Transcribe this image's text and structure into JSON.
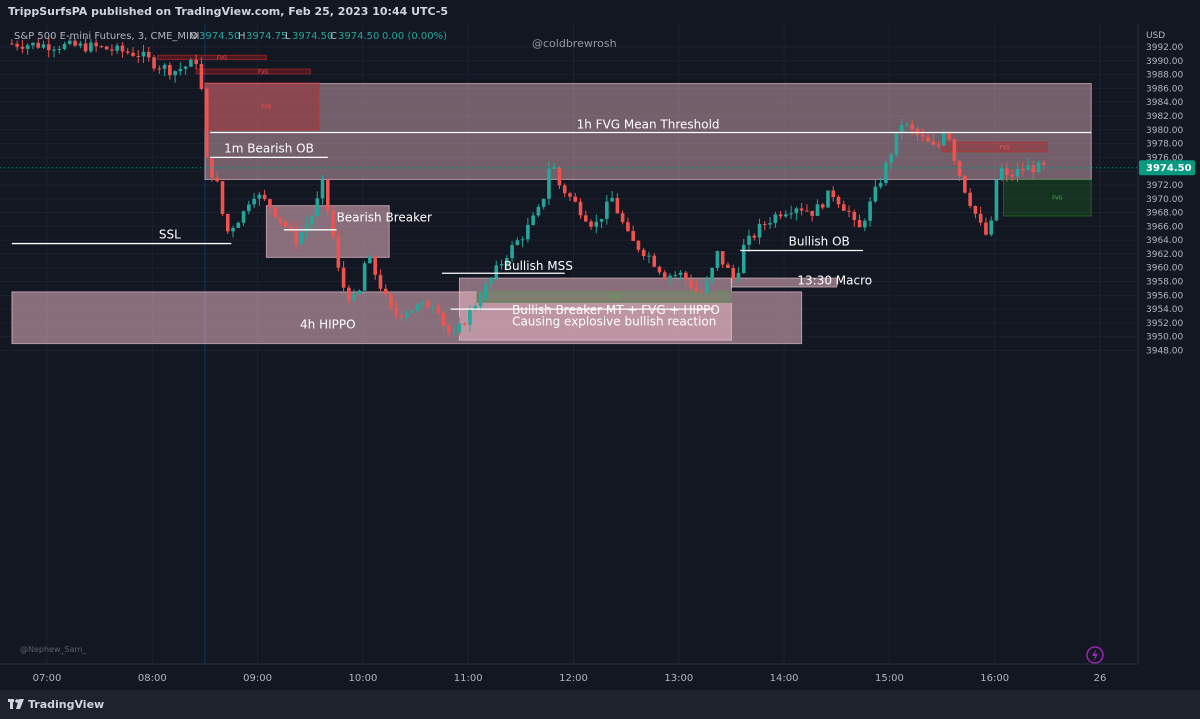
{
  "header": {
    "published_line": "TrippSurfsPA published on TradingView.com, Feb 25, 2023 10:44 UTC-5"
  },
  "legend": {
    "symbol": "S&P 500 E-mini Futures, 3, CME_MINI",
    "open_label": "O",
    "open": "3974.50",
    "high_label": "H",
    "high": "3974.75",
    "low_label": "L",
    "low": "3974.50",
    "close_label": "C",
    "close": "3974.50",
    "change": "0.00 (0.00%)"
  },
  "watermark": "@coldbrewrosh",
  "watermark_bottom": "@Nephew_Sam_",
  "currency": "USD",
  "price_badge": "3974.50",
  "footer": {
    "brand": "TradingView"
  },
  "colors": {
    "background": "#131722",
    "up": "#26a69a",
    "down": "#ef5350",
    "zone_fill": "#e9b7c4",
    "fvg_bear": "#b71c1c",
    "fvg_bull": "#1b5e20",
    "badge": "#089981",
    "text": "#b2b5be"
  },
  "chart_data": {
    "type": "candlestick",
    "ylim": [
      3947,
      3993.5
    ],
    "x_range": [
      "06:40",
      "16:30"
    ],
    "y_ticks": [
      3992,
      3990,
      3988,
      3986,
      3984,
      3982,
      3980,
      3978,
      3976,
      3974,
      3972,
      3970,
      3968,
      3966,
      3964,
      3962,
      3960,
      3958,
      3956,
      3954,
      3952,
      3950,
      3948
    ],
    "x_ticks": [
      {
        "label": "07:00",
        "t": "07:00"
      },
      {
        "label": "08:00",
        "t": "08:00"
      },
      {
        "label": "09:00",
        "t": "09:00"
      },
      {
        "label": "10:00",
        "t": "10:00"
      },
      {
        "label": "11:00",
        "t": "11:00"
      },
      {
        "label": "12:00",
        "t": "12:00"
      },
      {
        "label": "13:00",
        "t": "13:00"
      },
      {
        "label": "14:00",
        "t": "14:00"
      },
      {
        "label": "15:00",
        "t": "15:00"
      },
      {
        "label": "16:00",
        "t": "16:00"
      },
      {
        "label": "26",
        "t": "17:00"
      }
    ],
    "anchors": [
      {
        "t": "06:40",
        "p": 3992.5
      },
      {
        "t": "07:30",
        "p": 3992
      },
      {
        "t": "07:55",
        "p": 3991
      },
      {
        "t": "08:05",
        "p": 3989.5
      },
      {
        "t": "08:15",
        "p": 3988.5
      },
      {
        "t": "08:25",
        "p": 3989.5
      },
      {
        "t": "08:30",
        "p": 3990.5
      },
      {
        "t": "08:33",
        "p": 3976
      },
      {
        "t": "08:40",
        "p": 3972
      },
      {
        "t": "08:45",
        "p": 3965
      },
      {
        "t": "08:55",
        "p": 3968
      },
      {
        "t": "09:00",
        "p": 3971
      },
      {
        "t": "09:10",
        "p": 3969
      },
      {
        "t": "09:25",
        "p": 3964
      },
      {
        "t": "09:35",
        "p": 3968
      },
      {
        "t": "09:40",
        "p": 3972
      },
      {
        "t": "09:45",
        "p": 3966
      },
      {
        "t": "09:50",
        "p": 3958
      },
      {
        "t": "09:55",
        "p": 3956
      },
      {
        "t": "10:00",
        "p": 3955
      },
      {
        "t": "10:05",
        "p": 3962
      },
      {
        "t": "10:12",
        "p": 3958
      },
      {
        "t": "10:20",
        "p": 3953
      },
      {
        "t": "10:30",
        "p": 3954
      },
      {
        "t": "10:45",
        "p": 3955
      },
      {
        "t": "10:50",
        "p": 3951
      },
      {
        "t": "10:55",
        "p": 3950
      },
      {
        "t": "11:05",
        "p": 3954
      },
      {
        "t": "11:15",
        "p": 3958
      },
      {
        "t": "11:25",
        "p": 3962
      },
      {
        "t": "11:35",
        "p": 3965
      },
      {
        "t": "11:45",
        "p": 3969
      },
      {
        "t": "11:50",
        "p": 3976
      },
      {
        "t": "11:55",
        "p": 3972
      },
      {
        "t": "12:05",
        "p": 3969
      },
      {
        "t": "12:15",
        "p": 3966
      },
      {
        "t": "12:25",
        "p": 3970
      },
      {
        "t": "12:35",
        "p": 3964
      },
      {
        "t": "12:45",
        "p": 3962
      },
      {
        "t": "12:55",
        "p": 3959
      },
      {
        "t": "13:05",
        "p": 3959
      },
      {
        "t": "13:15",
        "p": 3956
      },
      {
        "t": "13:20",
        "p": 3958
      },
      {
        "t": "13:25",
        "p": 3962
      },
      {
        "t": "13:35",
        "p": 3958
      },
      {
        "t": "13:40",
        "p": 3963
      },
      {
        "t": "13:50",
        "p": 3966
      },
      {
        "t": "14:00",
        "p": 3968
      },
      {
        "t": "14:10",
        "p": 3969
      },
      {
        "t": "14:20",
        "p": 3968
      },
      {
        "t": "14:30",
        "p": 3971
      },
      {
        "t": "14:40",
        "p": 3968
      },
      {
        "t": "14:45",
        "p": 3965
      },
      {
        "t": "14:50",
        "p": 3968
      },
      {
        "t": "15:00",
        "p": 3974
      },
      {
        "t": "15:10",
        "p": 3981
      },
      {
        "t": "15:20",
        "p": 3979
      },
      {
        "t": "15:30",
        "p": 3977
      },
      {
        "t": "15:35",
        "p": 3981
      },
      {
        "t": "15:40",
        "p": 3976
      },
      {
        "t": "15:45",
        "p": 3972
      },
      {
        "t": "15:55",
        "p": 3966
      },
      {
        "t": "16:00",
        "p": 3964
      },
      {
        "t": "16:05",
        "p": 3975
      },
      {
        "t": "16:10",
        "p": 3973
      },
      {
        "t": "16:20",
        "p": 3974.5
      },
      {
        "t": "16:30",
        "p": 3974.5
      }
    ],
    "zones": [
      {
        "name": "zone-1h-fvg",
        "t0": "08:30",
        "t1": "16:55",
        "p0": 3986.7,
        "p1": 3972.8,
        "label": "1h FVG Mean Threshold",
        "label_pos": "mid-line",
        "kind": "zone"
      },
      {
        "name": "zone-4h-hippo",
        "t0": "06:40",
        "t1": "14:10",
        "p0": 3956.5,
        "p1": 3949,
        "label": "4h HIPPO",
        "label_pos": "bottom-left",
        "kind": "zone"
      },
      {
        "name": "zone-bearish-breaker",
        "t0": "09:05",
        "t1": "10:15",
        "p0": 3969,
        "p1": 3961.5,
        "label": "Bearish Breaker",
        "label_pos": "right-inside",
        "kind": "zone"
      },
      {
        "name": "zone-bullish-breaker",
        "t0": "10:55",
        "t1": "13:30",
        "p0": 3958.5,
        "p1": 3949.5,
        "label": "Bullish Breaker MT + FVG + HIPPO",
        "label2": "Causing explosive bullish reaction",
        "label_pos": "inside",
        "kind": "zone"
      },
      {
        "name": "zone-13-30-macro",
        "t0": "13:30",
        "t1": "14:30",
        "p0": 3958.5,
        "p1": 3957.2,
        "label": "13:30 Macro",
        "label_pos": "right",
        "kind": "zone"
      },
      {
        "name": "zone-fvg-0810",
        "t0": "08:03",
        "t1": "09:05",
        "p0": 3990.8,
        "p1": 3990.2,
        "label": "FVG",
        "kind": "fvg-bear"
      },
      {
        "name": "zone-fvg-0825",
        "t0": "08:25",
        "t1": "09:30",
        "p0": 3988.8,
        "p1": 3988.1,
        "label": "FVG",
        "kind": "fvg-bear"
      },
      {
        "name": "zone-fvg-0835",
        "t0": "08:30",
        "t1": "09:35",
        "p0": 3986.8,
        "p1": 3980,
        "label": "FVG",
        "kind": "fvg-bear"
      },
      {
        "name": "zone-fvg-1540",
        "t0": "15:30",
        "t1": "16:30",
        "p0": 3978.2,
        "p1": 3976.8,
        "label": "FVG",
        "kind": "fvg-bear"
      },
      {
        "name": "zone-fvg-1610",
        "t0": "16:05",
        "t1": "16:55",
        "p0": 3972.8,
        "p1": 3967.5,
        "label": "FVG",
        "kind": "fvg-bull"
      },
      {
        "name": "zone-fvg-1110",
        "t0": "11:05",
        "t1": "13:30",
        "p0": 3956.5,
        "p1": 3955,
        "label": "FVG",
        "kind": "fvg-bull"
      }
    ],
    "lines": [
      {
        "name": "line-1h-fvg-mt",
        "t0": "08:33",
        "t1": "16:55",
        "p": 3979.6
      },
      {
        "name": "line-1m-bearish-ob",
        "t0": "08:33",
        "t1": "09:40",
        "p": 3976,
        "label": "1m Bearish OB"
      },
      {
        "name": "line-ssl",
        "t0": "06:40",
        "t1": "08:45",
        "p": 3963.5,
        "label": "SSL"
      },
      {
        "name": "line-bearish-breaker",
        "t0": "09:15",
        "t1": "09:45",
        "p": 3965.5
      },
      {
        "name": "line-bullish-mss",
        "t0": "10:45",
        "t1": "11:55",
        "p": 3959.2,
        "label": "Bullish MSS"
      },
      {
        "name": "line-bullish-ob",
        "t0": "13:35",
        "t1": "14:45",
        "p": 3962.5,
        "label": "Bullish OB"
      },
      {
        "name": "line-breaker-mt",
        "t0": "10:50",
        "t1": "13:20",
        "p": 3954
      }
    ],
    "session_line": {
      "t": "08:30"
    }
  }
}
